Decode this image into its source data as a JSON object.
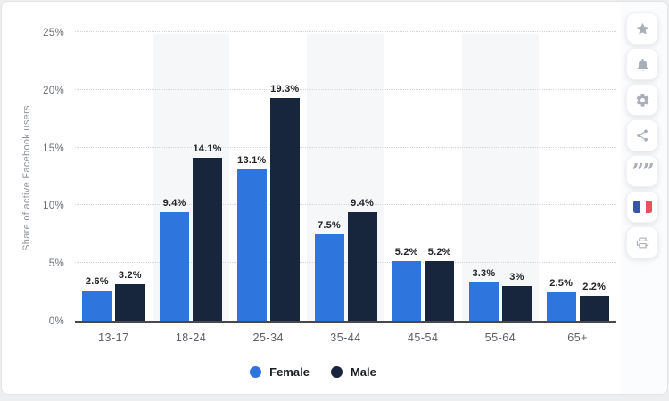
{
  "chart_data": {
    "type": "bar",
    "title": "",
    "xlabel": "",
    "ylabel": "Share of active Facebook users",
    "categories": [
      "13-17",
      "18-24",
      "25-34",
      "35-44",
      "45-54",
      "55-64",
      "65+"
    ],
    "series": [
      {
        "name": "Female",
        "color": "#2e76dd",
        "values": [
          2.6,
          9.4,
          13.1,
          7.5,
          5.2,
          3.3,
          2.5
        ],
        "labels": [
          "2.6%",
          "9.4%",
          "13.1%",
          "7.5%",
          "5.2%",
          "3.3%",
          "2.5%"
        ]
      },
      {
        "name": "Male",
        "color": "#17263d",
        "values": [
          3.2,
          14.1,
          19.3,
          9.4,
          5.2,
          3,
          2.2
        ],
        "labels": [
          "3.2%",
          "14.1%",
          "19.3%",
          "9.4%",
          "5.2%",
          "3%",
          "2.2%"
        ]
      }
    ],
    "ylim": [
      0,
      25
    ],
    "y_ticks": [
      "0%",
      "5%",
      "10%",
      "15%",
      "20%",
      "25%"
    ],
    "y_tick_values": [
      0,
      5,
      10,
      15,
      20,
      25
    ],
    "grid": "horizontal-dotted",
    "plot_band_alternating": true,
    "legend_position": "bottom"
  },
  "colors": {
    "female": "#2e76dd",
    "male": "#17263d",
    "gridline": "#d4d6d9",
    "plot_band": "#f6f7f9",
    "axis_line": "#47494d",
    "icon_gray": "#a9afb8",
    "flag_blue": "#3757a6",
    "flag_white": "#ffffff",
    "flag_red": "#e8505b"
  },
  "sidebar": {
    "buttons": [
      {
        "icon": "star-icon"
      },
      {
        "icon": "bell-icon"
      },
      {
        "icon": "gear-icon"
      },
      {
        "icon": "share-icon"
      },
      {
        "icon": "quote-icon"
      },
      {
        "icon": "french-flag-icon"
      },
      {
        "icon": "printer-icon"
      }
    ]
  }
}
